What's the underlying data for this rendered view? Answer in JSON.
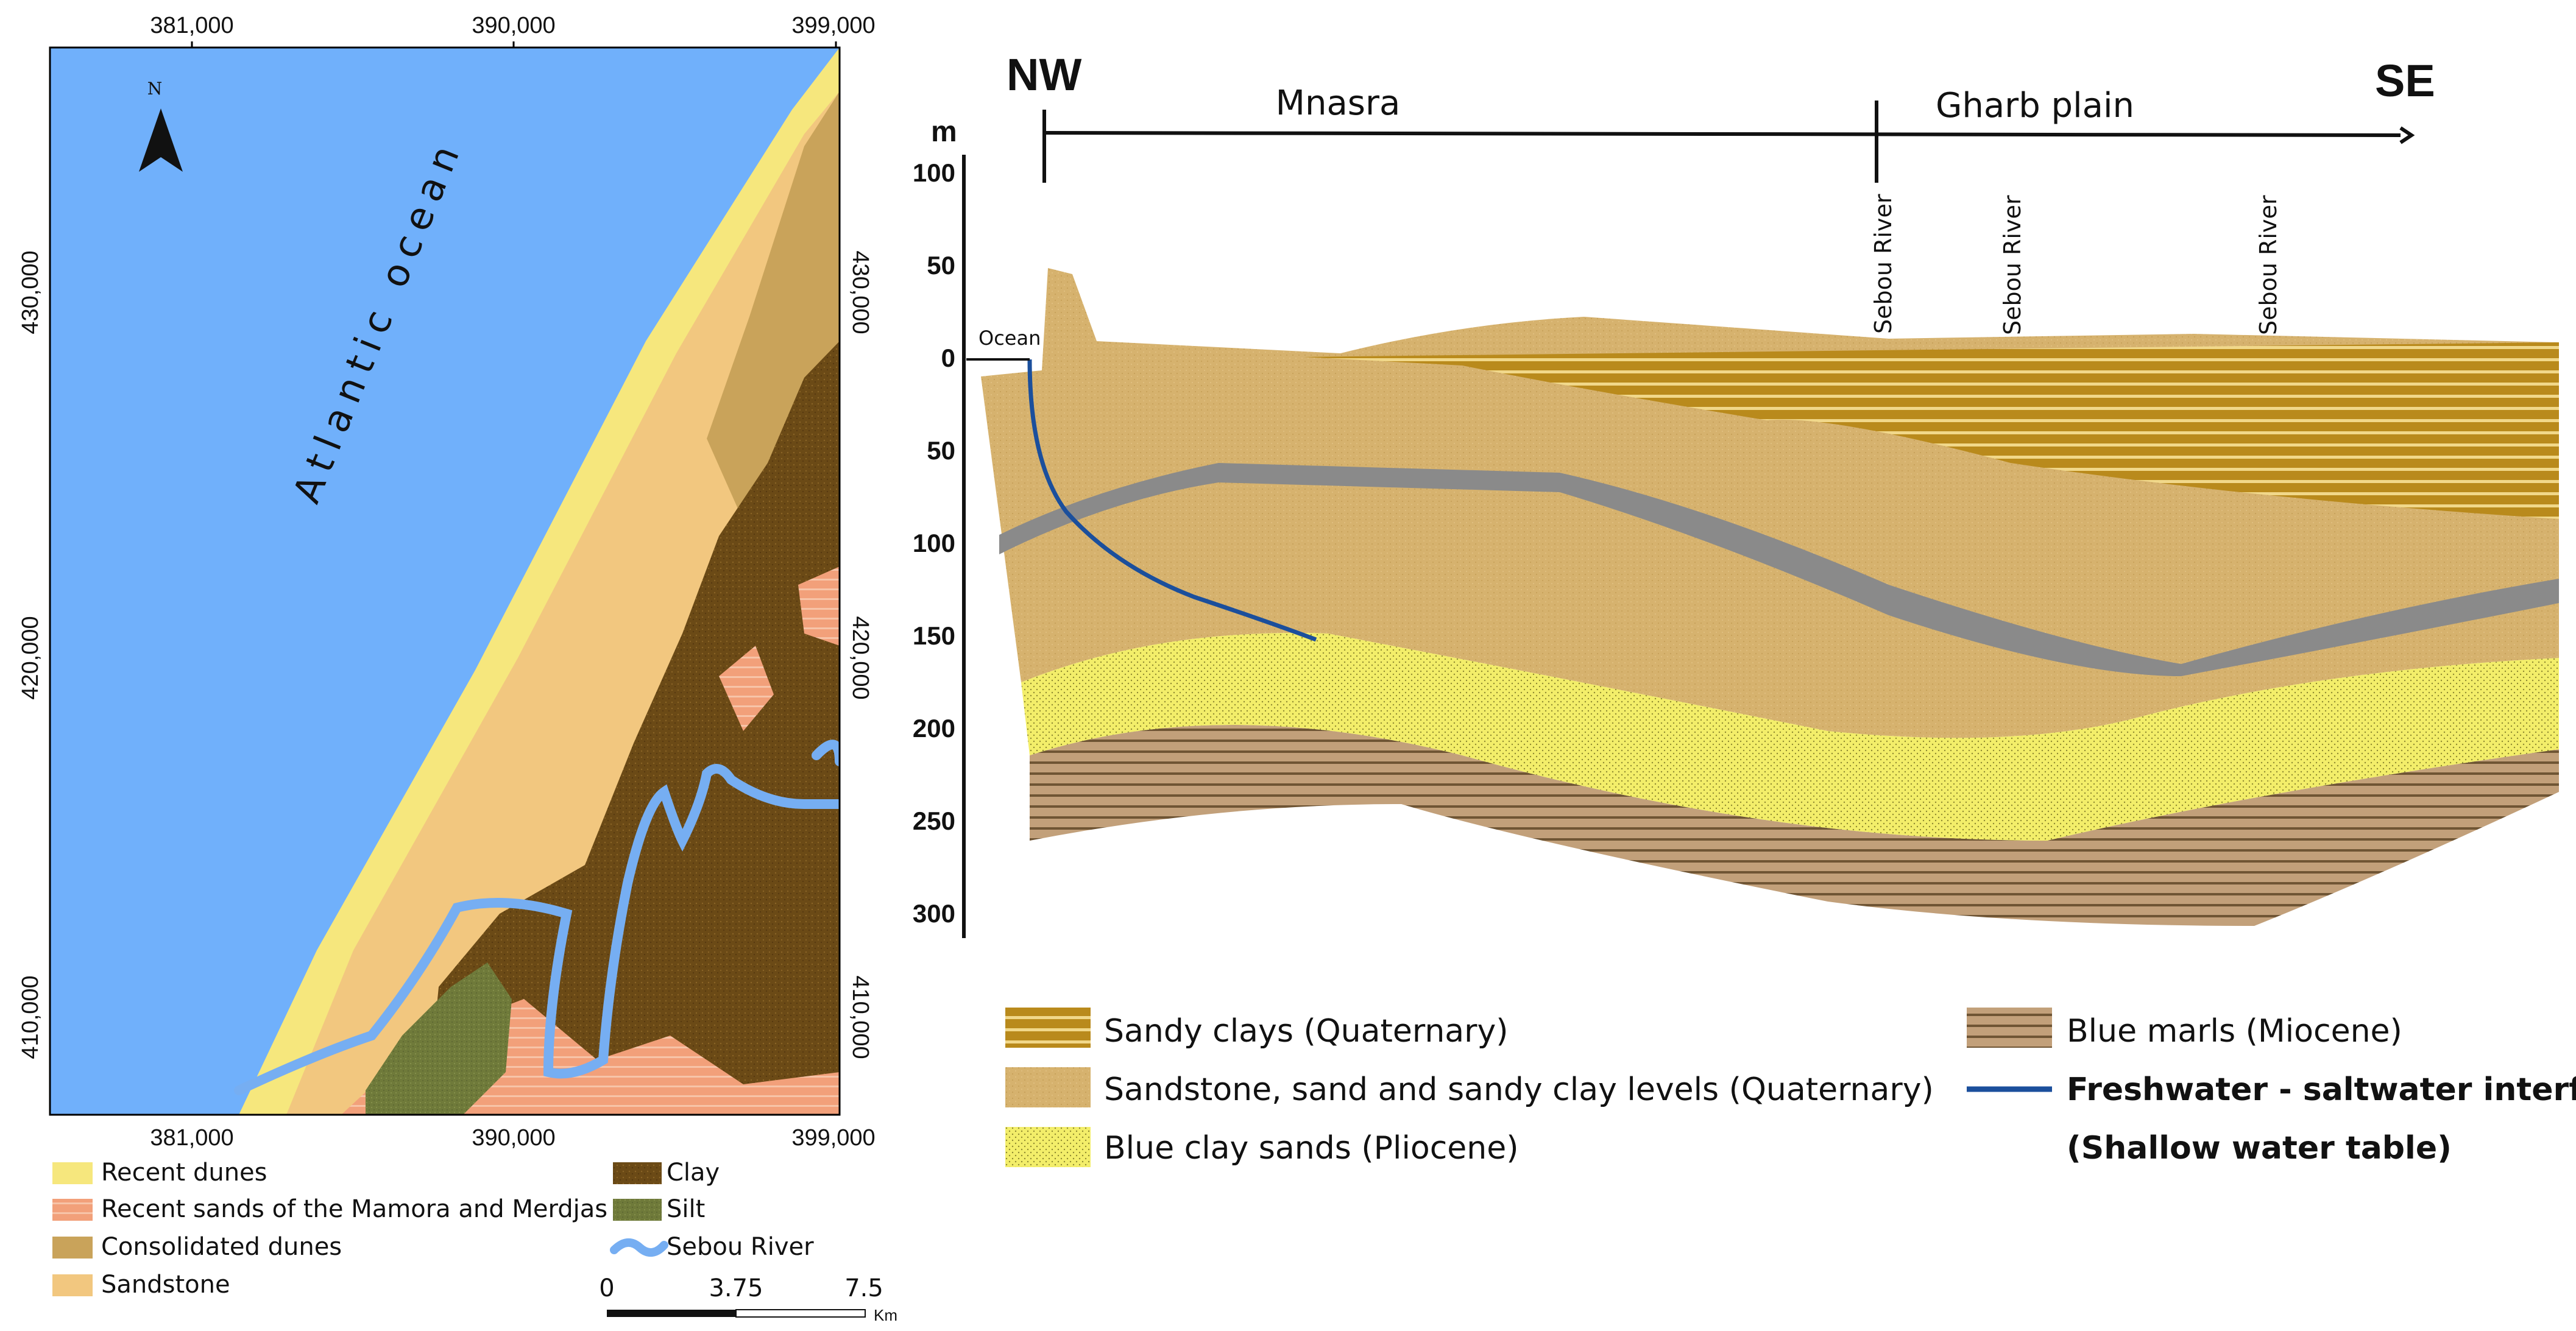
{
  "map": {
    "ocean_label": "Atlantic ocean",
    "north_label": "N",
    "x_ticks": [
      "381,000",
      "390,000",
      "399,000"
    ],
    "y_ticks": [
      "430,000",
      "420,000",
      "410,000"
    ],
    "scale": {
      "labels": [
        "0",
        "3.75",
        "7.5"
      ],
      "unit": "Km"
    },
    "legend": [
      {
        "label": "Recent dunes",
        "color": "#f6e77d"
      },
      {
        "label": "Recent sands of the Mamora and Merdjas",
        "color": "#f2a07a"
      },
      {
        "label": "Consolidated dunes",
        "color": "#c9a35a"
      },
      {
        "label": "Sandstone",
        "color": "#f2c77f"
      },
      {
        "label": "Clay",
        "color": "#6b4a16"
      },
      {
        "label": "Silt",
        "color": "#6f7a3a"
      },
      {
        "label": "Sebou River",
        "color": "#76aef2"
      }
    ],
    "colors": {
      "ocean": "#70b0fb"
    }
  },
  "section": {
    "nw_label": "NW",
    "se_label": "SE",
    "unit_label": "m",
    "zone_labels": [
      "Mnasra",
      "Gharb plain"
    ],
    "river_labels": [
      "Sebou River",
      "Sebou River",
      "Sebou River"
    ],
    "ocean_label": "Ocean",
    "depth_ticks": [
      "100",
      "50",
      "0",
      "50",
      "100",
      "150",
      "200",
      "250",
      "300"
    ],
    "legend": [
      {
        "label": "Sandy clays (Quaternary)",
        "color": "#b98a1c"
      },
      {
        "label": "Sandstone, sand and sandy clay levels (Quaternary)",
        "color": "#d6b26e"
      },
      {
        "label": "Blue clay sands (Pliocene)",
        "color": "#f3ee6a"
      },
      {
        "label": "Blue marls (Miocene)",
        "color": "#c2a07a"
      },
      {
        "label": "Freshwater - saltwater interface",
        "color": "#1b4f9c"
      },
      {
        "label": "(Shallow water table)",
        "color": ""
      }
    ],
    "colors": {
      "gray_layer": "#8a8a8a"
    }
  }
}
